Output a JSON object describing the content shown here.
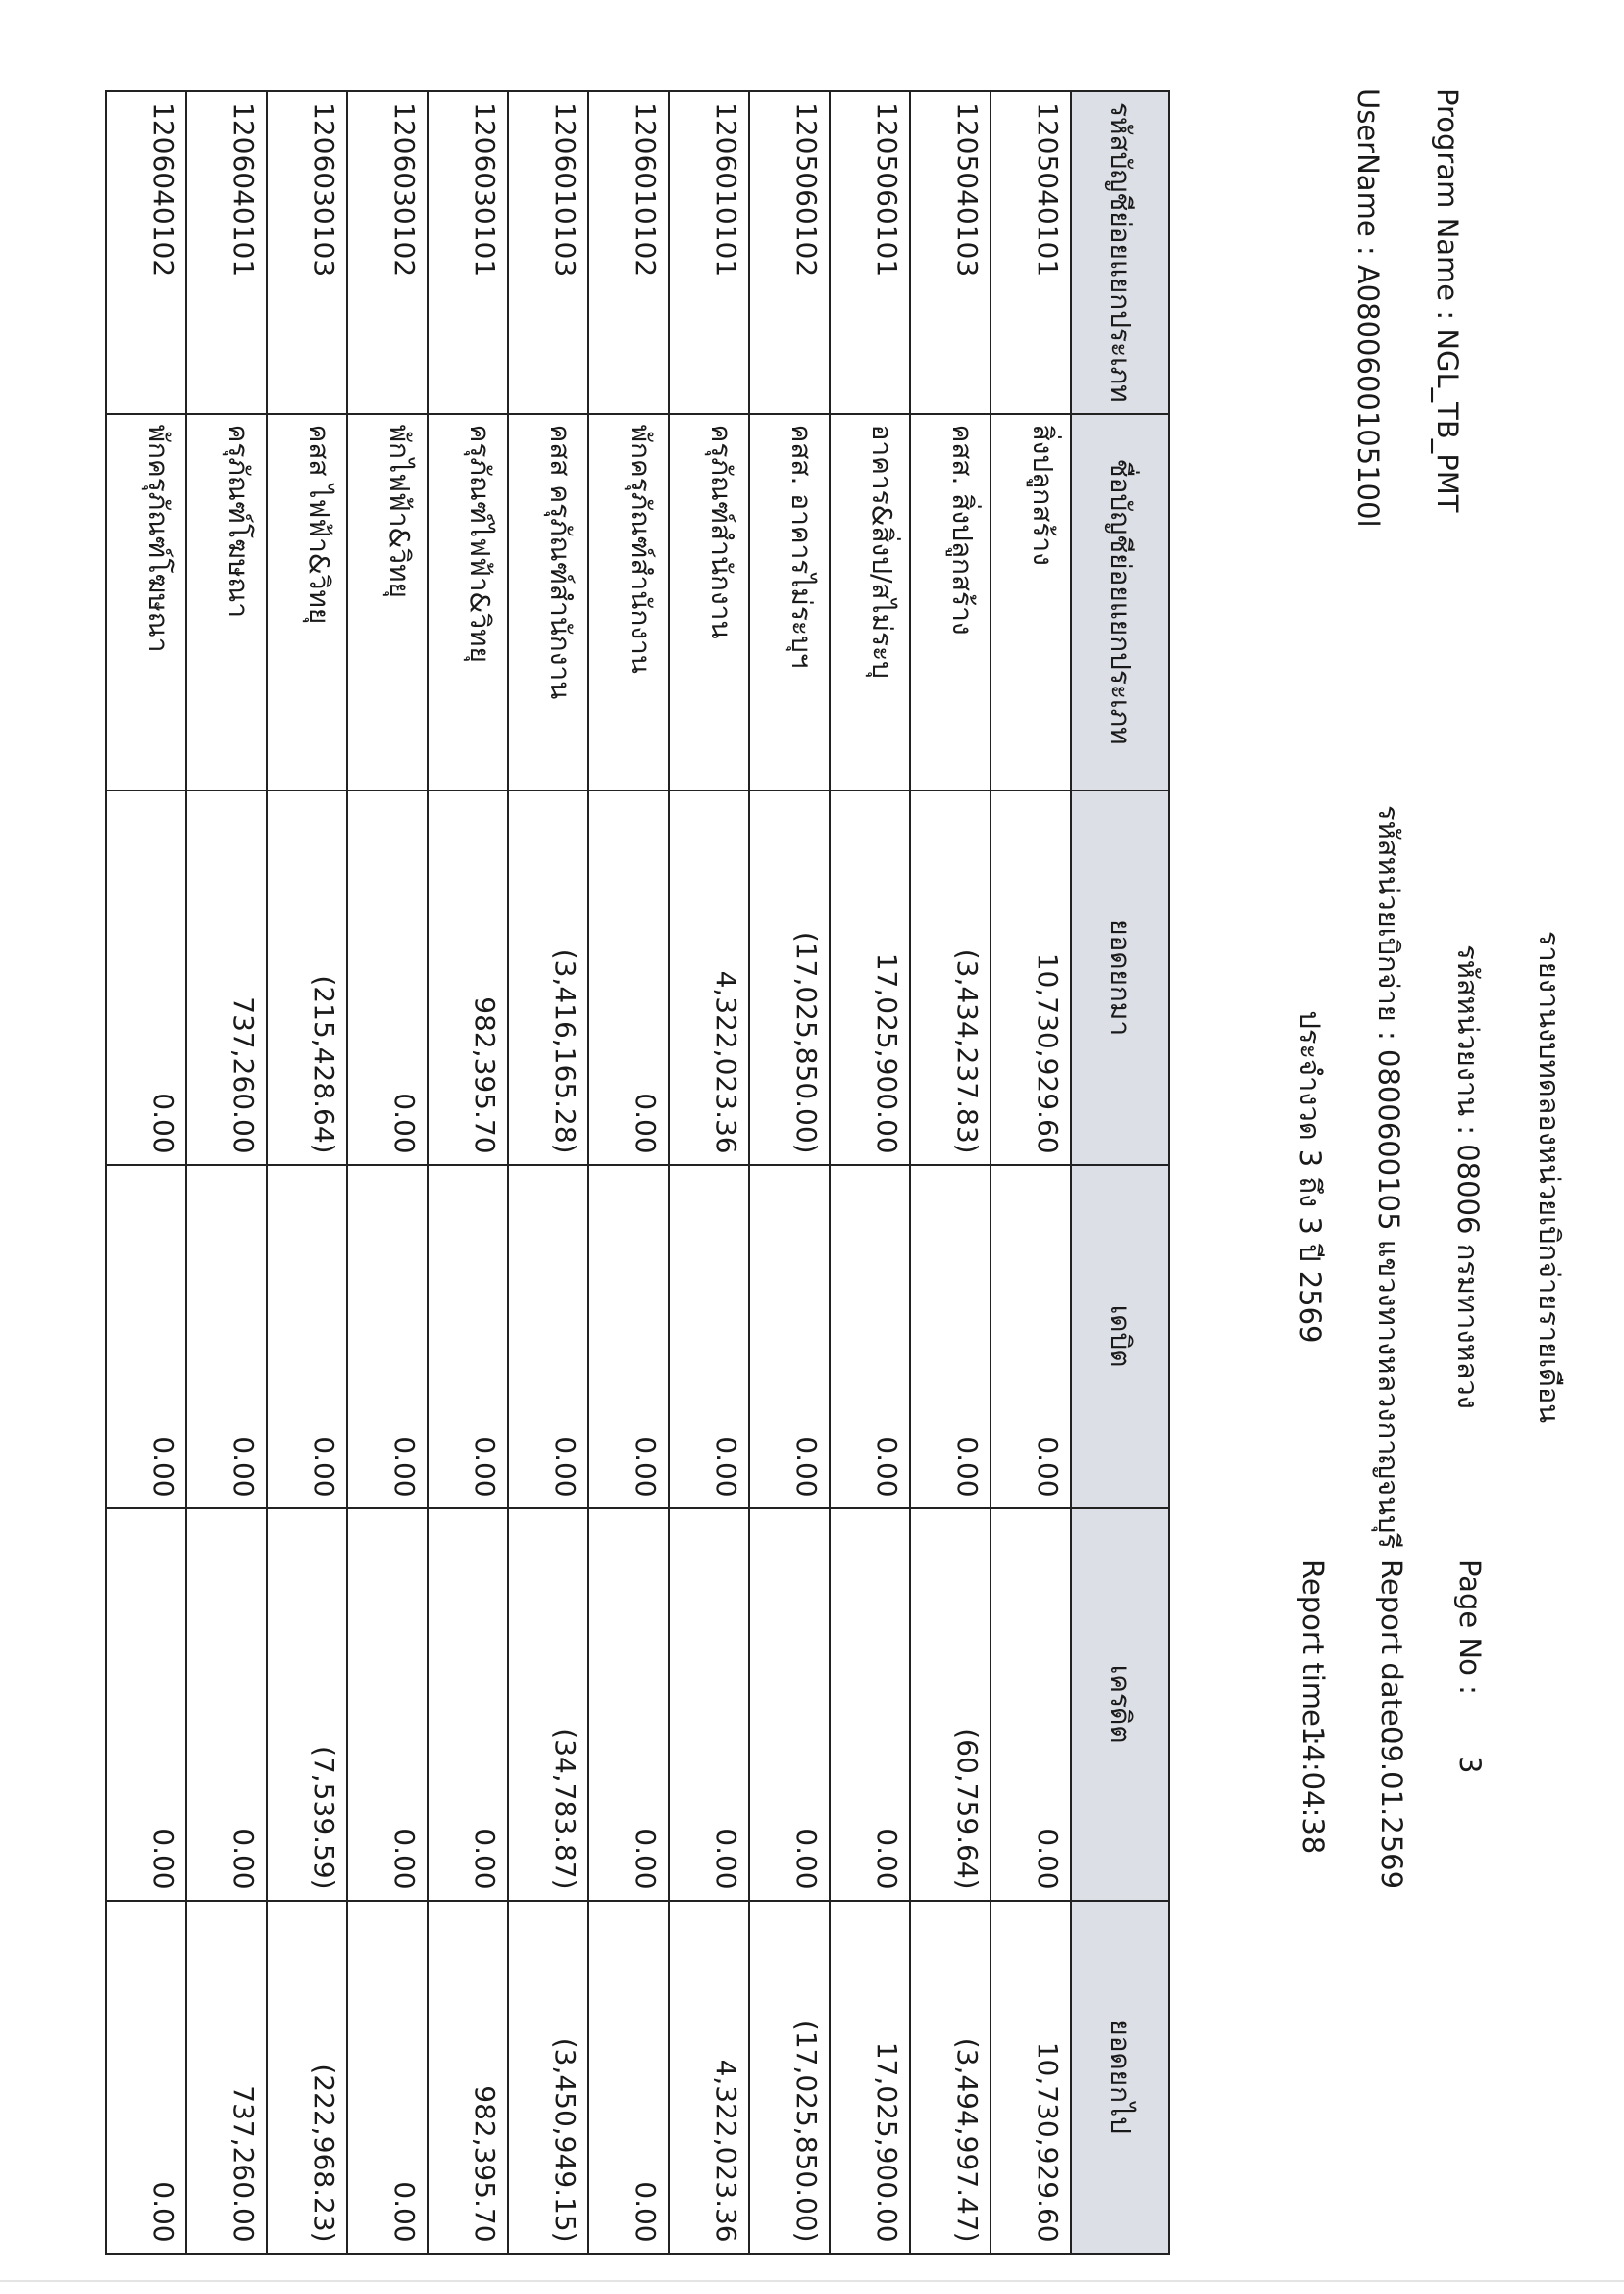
{
  "header": {
    "title": "รายงานงบทดลองหน่วยเบิกจ่ายรายเดือน",
    "agency": "รหัสหน่วยงาน : 08006 กรมทางหลวง",
    "disbursing_unit": "รหัสหน่วยเบิกจ่าย : 0800600105 แขวงทางหลวงกาญจนบุรี",
    "period": "ประจำงวด 3 ถึง 3 ปี 2569",
    "program_name": "Program Name : NGL_TB_PMT",
    "user_name": "UserName : A0800600105100l",
    "page_no_label": "Page No :",
    "page_no": "3",
    "report_date_label": "Report date :",
    "report_date": "09.01.2569",
    "report_time_label": "Report time :",
    "report_time": "14:04:38"
  },
  "table": {
    "columns": [
      "รหัสบัญชีย่อยแยกประเภท",
      "ชื่อบัญชีย่อยแยกประเภท",
      "ยอดยกมา",
      "เดบิต",
      "เครดิต",
      "ยอดยกไป"
    ],
    "rows": [
      [
        "1205040101",
        "สิ่งปลูกสร้าง",
        "10,730,929.60",
        "0.00",
        "0.00",
        "10,730,929.60"
      ],
      [
        "1205040103",
        "คสส. สิ่งปลูกสร้าง",
        "(3,434,237.83)",
        "0.00",
        "(60,759.64)",
        "(3,494,997.47)"
      ],
      [
        "1205060101",
        "อาคาร&สิ่งป/สไม่ระบุ",
        "17,025,900.00",
        "0.00",
        "0.00",
        "17,025,900.00"
      ],
      [
        "1205060102",
        "คสส. อาคารไม่ระบุฯ",
        "(17,025,850.00)",
        "0.00",
        "0.00",
        "(17,025,850.00)"
      ],
      [
        "1206010101",
        "ครุภัณฑ์สำนักงาน",
        "4,322,023.36",
        "0.00",
        "0.00",
        "4,322,023.36"
      ],
      [
        "1206010102",
        "พักครุภัณฑ์สำนักงาน",
        "0.00",
        "0.00",
        "0.00",
        "0.00"
      ],
      [
        "1206010103",
        "คสส ครุภัณฑ์สำนักงาน",
        "(3,416,165.28)",
        "0.00",
        "(34,783.87)",
        "(3,450,949.15)"
      ],
      [
        "1206030101",
        "ครุภัณฑ์ไฟฟ้า&วิทยุ",
        "982,395.70",
        "0.00",
        "0.00",
        "982,395.70"
      ],
      [
        "1206030102",
        "พักไฟฟ้า&วิทยุ",
        "0.00",
        "0.00",
        "0.00",
        "0.00"
      ],
      [
        "1206030103",
        "คสส ไฟฟ้า&วิทยุ",
        "(215,428.64)",
        "0.00",
        "(7,539.59)",
        "(222,968.23)"
      ],
      [
        "1206040101",
        "ครุภัณฑ์โฆษณา",
        "737,260.00",
        "0.00",
        "0.00",
        "737,260.00"
      ],
      [
        "1206040102",
        "พักครุภัณฑ์โฆษณา",
        "0.00",
        "0.00",
        "0.00",
        "0.00"
      ]
    ]
  },
  "colors": {
    "header_bg": "#dcdfe5",
    "border": "#222222"
  }
}
